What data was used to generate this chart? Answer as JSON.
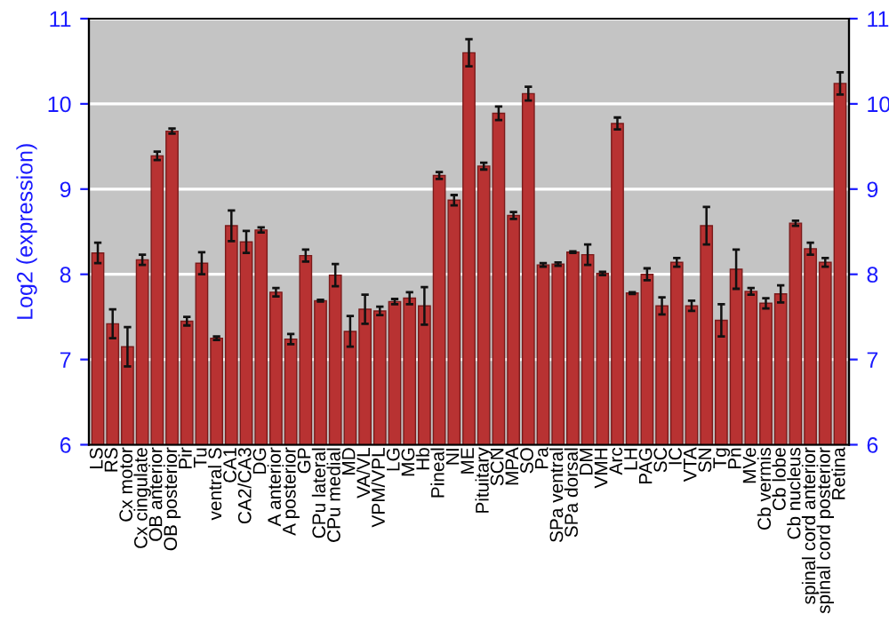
{
  "chart_data": {
    "type": "bar",
    "ylabel": "Log2 (expression)",
    "categories": [
      "LS",
      "RS",
      "Cx motor",
      "Cx cingulate",
      "OB anterior",
      "OB posterior",
      "Pir",
      "Tu",
      "ventral S",
      "CA1",
      "CA2/CA3",
      "DG",
      "A anterior",
      "A posterior",
      "GP",
      "CPu lateral",
      "CPu medial",
      "MD",
      "VA/VL",
      "VPM/VPL",
      "LG",
      "MG",
      "Hb",
      "Pineal",
      "NI",
      "ME",
      "Pituitary",
      "SCN",
      "MPA",
      "SO",
      "Pa",
      "SPa ventral",
      "SPa dorsal",
      "DM",
      "VMH",
      "Arc",
      "LH",
      "PAG",
      "SC",
      "IC",
      "VTA",
      "SN",
      "Tg",
      "Pn",
      "MVe",
      "Cb vermis",
      "Cb lobe",
      "Cb nucleus",
      "spinal cord anterior",
      "spinal cord posterior",
      "Retina"
    ],
    "values": [
      8.25,
      7.42,
      7.15,
      8.17,
      9.39,
      9.68,
      7.45,
      8.13,
      7.25,
      8.57,
      8.38,
      8.52,
      7.79,
      7.24,
      8.22,
      7.69,
      7.99,
      7.33,
      7.59,
      7.57,
      7.68,
      7.72,
      7.63,
      9.16,
      8.87,
      10.6,
      9.27,
      9.89,
      8.69,
      10.12,
      8.11,
      8.12,
      8.26,
      8.23,
      8.01,
      9.77,
      7.78,
      8.0,
      7.63,
      8.14,
      7.63,
      8.57,
      7.46,
      8.06,
      7.8,
      7.66,
      7.77,
      8.6,
      8.3,
      8.14,
      10.24
    ],
    "errors": [
      0.12,
      0.17,
      0.23,
      0.06,
      0.05,
      0.03,
      0.05,
      0.13,
      0.02,
      0.18,
      0.13,
      0.03,
      0.05,
      0.06,
      0.07,
      0.01,
      0.13,
      0.18,
      0.17,
      0.05,
      0.03,
      0.07,
      0.22,
      0.04,
      0.06,
      0.16,
      0.04,
      0.08,
      0.04,
      0.08,
      0.02,
      0.02,
      0.01,
      0.12,
      0.02,
      0.07,
      0.01,
      0.07,
      0.1,
      0.05,
      0.06,
      0.22,
      0.19,
      0.23,
      0.04,
      0.06,
      0.1,
      0.03,
      0.07,
      0.05,
      0.13
    ],
    "color": "#b83232",
    "ylim": [
      6,
      11
    ],
    "yticks": [
      6,
      7,
      8,
      9,
      10,
      11
    ],
    "y2lim": [
      6,
      11
    ],
    "y2ticks": [
      6,
      7,
      8,
      9,
      10,
      11
    ],
    "grid": "y"
  }
}
